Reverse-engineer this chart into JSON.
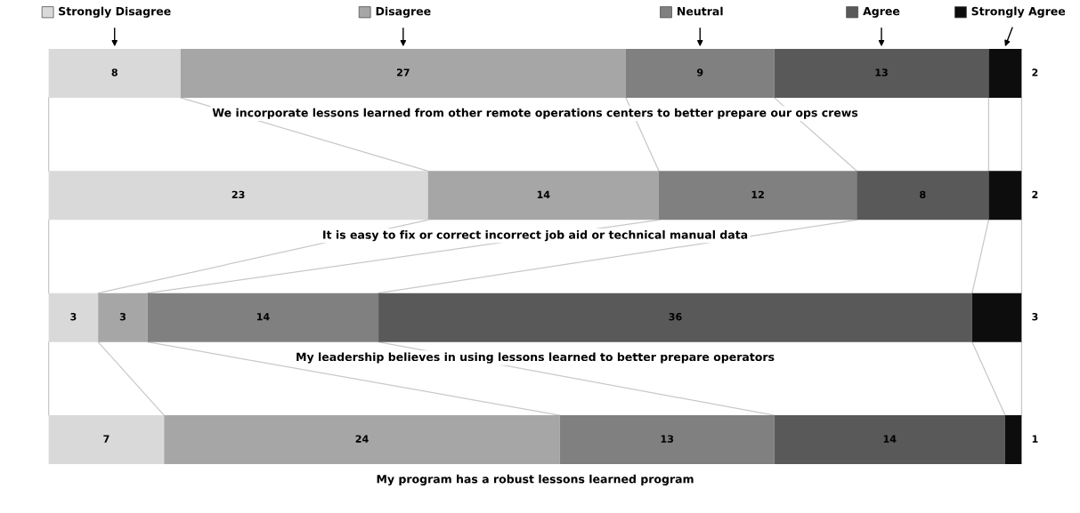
{
  "chart_data": {
    "type": "bar",
    "orientation": "horizontal",
    "stacked": true,
    "data_labels": true,
    "legend": "top",
    "categories": [
      "We incorporate lessons learned from other remote operations centers to better prepare our ops crews",
      "It is easy to fix or correct incorrect job aid or technical manual data",
      "My leadership believes in using lessons learned to better prepare operators",
      "My program has a robust lessons learned program"
    ],
    "series": [
      {
        "name": "Strongly Disagree",
        "color": "#d9d9d9",
        "values": [
          8,
          23,
          3,
          7
        ]
      },
      {
        "name": "Disagree",
        "color": "#a6a6a6",
        "values": [
          27,
          14,
          3,
          24
        ]
      },
      {
        "name": "Neutral",
        "color": "#808080",
        "values": [
          9,
          12,
          14,
          13
        ]
      },
      {
        "name": "Agree",
        "color": "#595959",
        "values": [
          13,
          8,
          36,
          14
        ]
      },
      {
        "name": "Strongly Agree",
        "color": "#0d0d0d",
        "values": [
          2,
          2,
          3,
          1
        ]
      }
    ]
  }
}
